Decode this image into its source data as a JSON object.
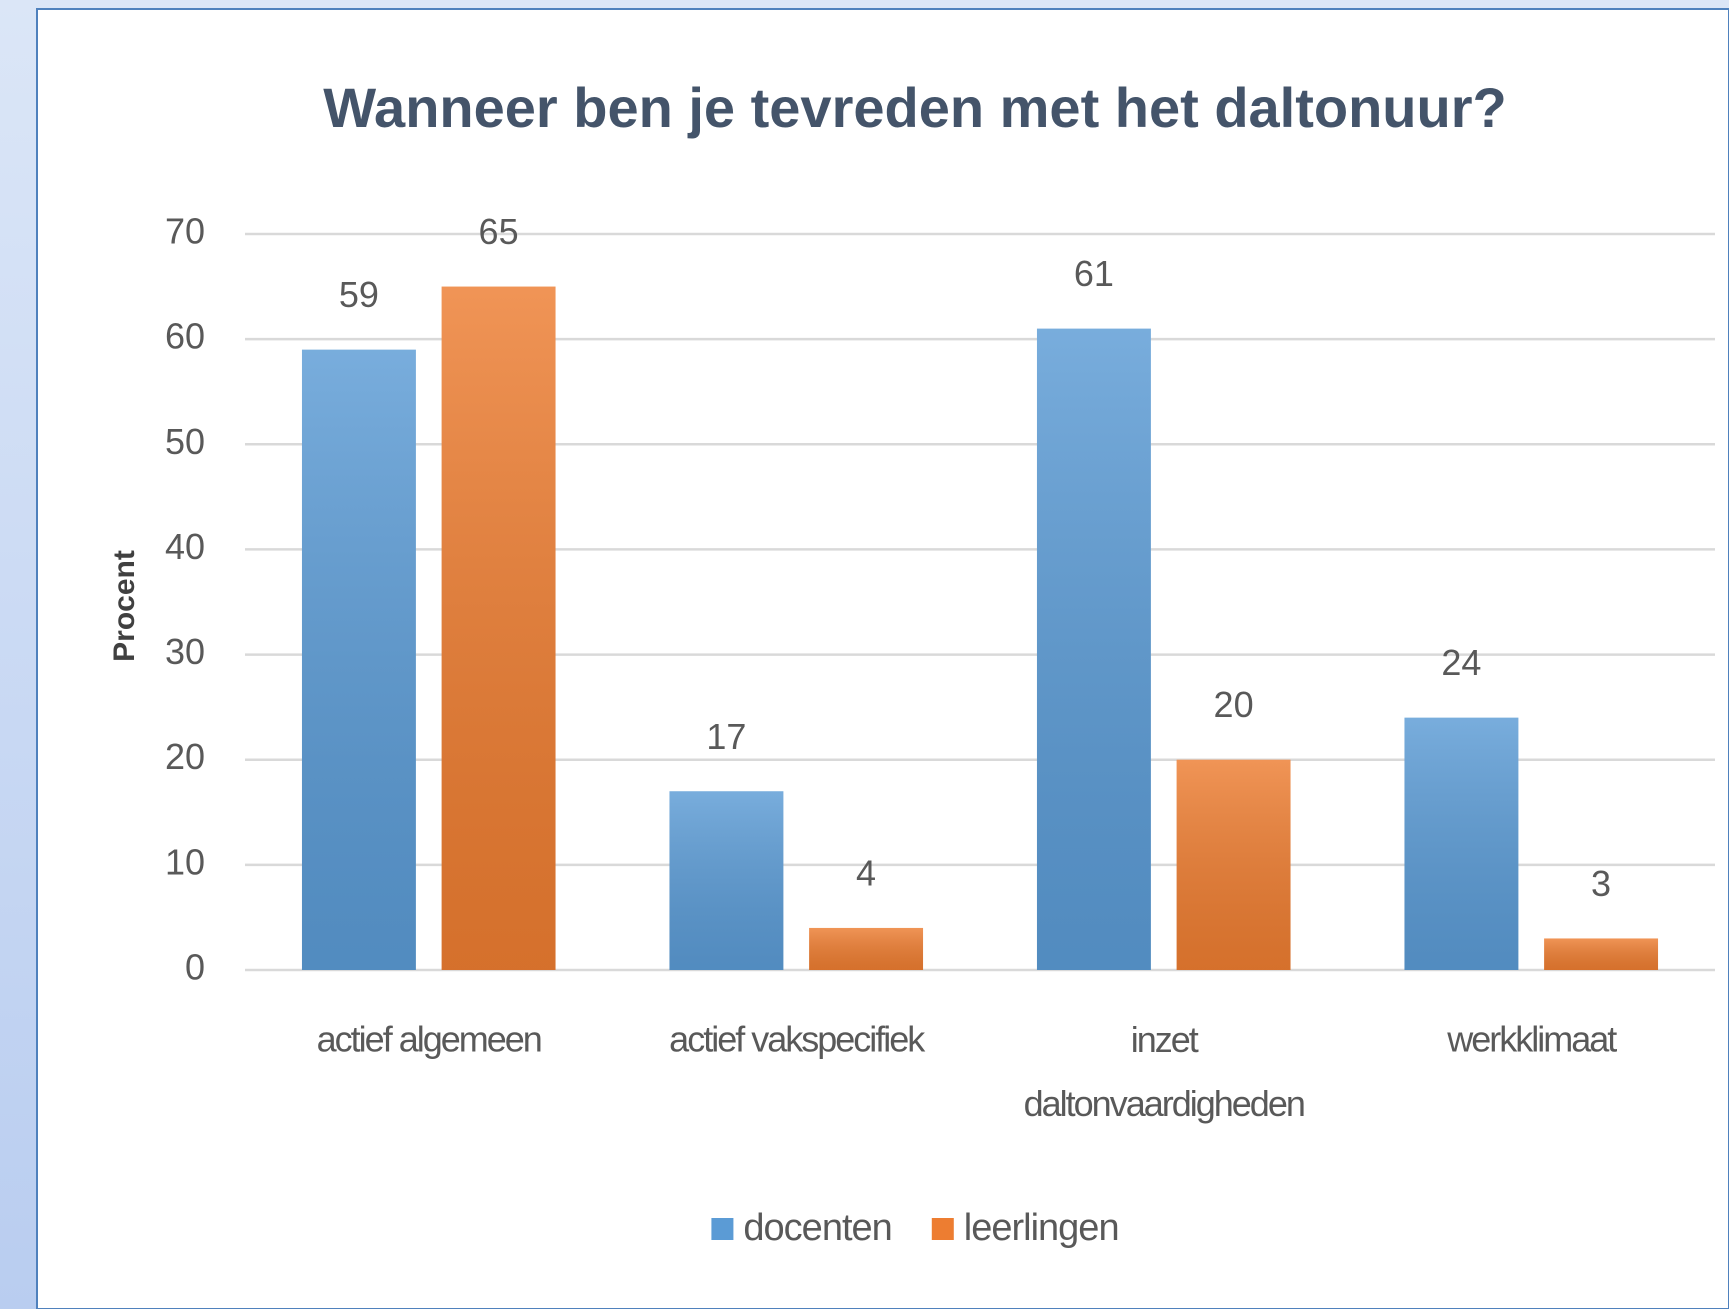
{
  "chart_data": {
    "type": "bar",
    "title": "Wanneer ben je tevreden met het  daltonuur?",
    "y_label": "Procent",
    "categories": [
      "actief algemeen",
      "actief vakspecifiek",
      "inzet daltonvaardigheden",
      "werkklimaat"
    ],
    "series": [
      {
        "name": "docenten",
        "color": "#5b9bd5",
        "values": [
          59,
          17,
          61,
          24
        ]
      },
      {
        "name": "leerlingen",
        "color": "#ed7d31",
        "values": [
          65,
          4,
          20,
          3
        ]
      }
    ],
    "ylim": [
      0,
      70
    ],
    "yticks": [
      0,
      10,
      20,
      30,
      40,
      50,
      60,
      70
    ],
    "grid": true,
    "legend": "bottom"
  }
}
